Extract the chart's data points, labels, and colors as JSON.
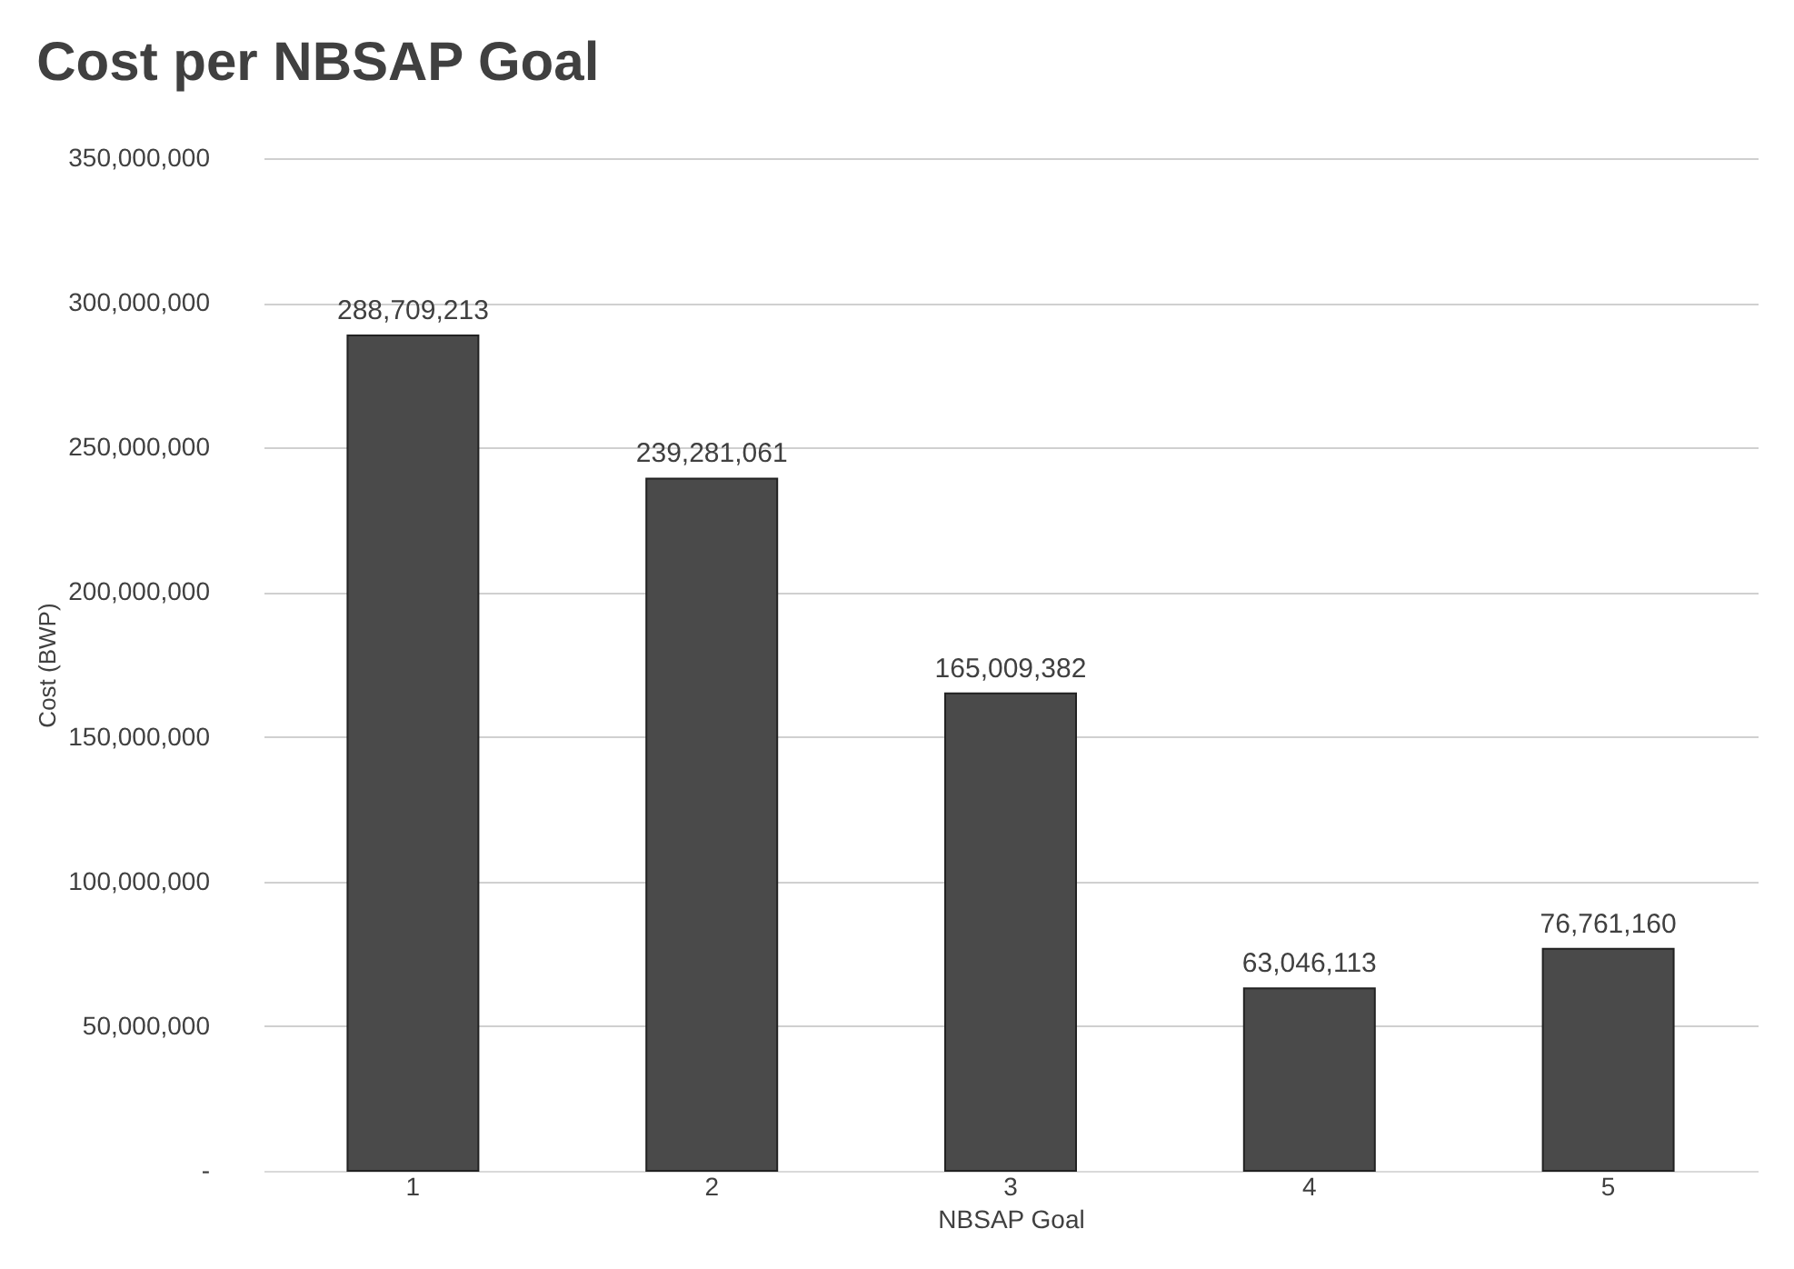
{
  "chart_data": {
    "type": "bar",
    "title": "Cost per NBSAP Goal",
    "xlabel": "NBSAP Goal",
    "ylabel": "Cost (BWP)",
    "categories": [
      "1",
      "2",
      "3",
      "4",
      "5"
    ],
    "values": [
      288709213,
      239281061,
      165009382,
      63046113,
      76761160
    ],
    "value_labels": [
      "288,709,213",
      "239,281,061",
      "165,009,382",
      "63,046,113",
      "76,761,160"
    ],
    "color": "#4a4a4a",
    "ylim": [
      0,
      350000000
    ],
    "yticks": [
      {
        "value": 0,
        "label": "-"
      },
      {
        "value": 50000000,
        "label": "50,000,000"
      },
      {
        "value": 100000000,
        "label": "100,000,000"
      },
      {
        "value": 150000000,
        "label": "150,000,000"
      },
      {
        "value": 200000000,
        "label": "200,000,000"
      },
      {
        "value": 250000000,
        "label": "250,000,000"
      },
      {
        "value": 300000000,
        "label": "300,000,000"
      },
      {
        "value": 350000000,
        "label": "350,000,000"
      }
    ],
    "grid": "y"
  }
}
